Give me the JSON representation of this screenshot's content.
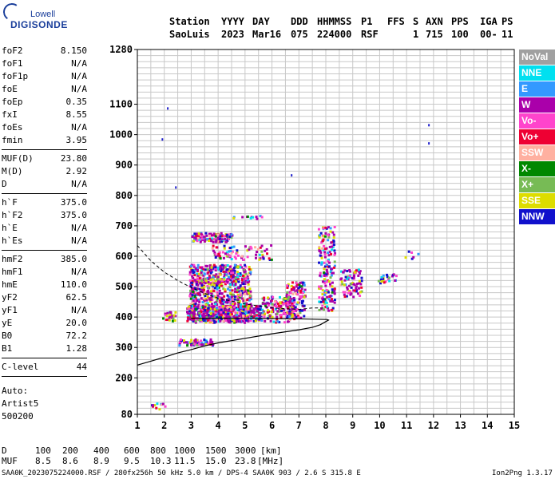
{
  "logo": {
    "top": "Lowell",
    "bottom": "DIGISONDE"
  },
  "header": {
    "labels": [
      "Station",
      "YYYY",
      "DAY",
      "DDD",
      "HHMMSS",
      "P1",
      "FFS",
      "S",
      "AXN",
      "PPS",
      "IGA",
      "PS"
    ],
    "values": [
      "SaoLuis",
      "2023",
      "Mar16",
      "075",
      "224000",
      "RSF",
      "",
      "1",
      "715",
      "100",
      "00-",
      "11"
    ]
  },
  "parameters": [
    {
      "name": "foF2",
      "value": "8.150"
    },
    {
      "name": "foF1",
      "value": "N/A"
    },
    {
      "name": "foF1p",
      "value": "N/A"
    },
    {
      "name": "foE",
      "value": "N/A"
    },
    {
      "name": "foEp",
      "value": "0.35"
    },
    {
      "name": "fxI",
      "value": "8.55"
    },
    {
      "name": "foEs",
      "value": "N/A"
    },
    {
      "name": "fmin",
      "value": "3.95"
    },
    {
      "sep": true
    },
    {
      "name": "MUF(D)",
      "value": "23.80"
    },
    {
      "name": "M(D)",
      "value": "2.92"
    },
    {
      "name": "D",
      "value": "N/A"
    },
    {
      "sep": true
    },
    {
      "name": "h`F",
      "value": "375.0"
    },
    {
      "name": "h`F2",
      "value": "375.0"
    },
    {
      "name": "h`E",
      "value": "N/A"
    },
    {
      "name": "h`Es",
      "value": "N/A"
    },
    {
      "sep": true
    },
    {
      "name": "hmF2",
      "value": "385.0"
    },
    {
      "name": "hmF1",
      "value": "N/A"
    },
    {
      "name": "hmE",
      "value": "110.0"
    },
    {
      "name": "yF2",
      "value": "62.5"
    },
    {
      "name": "yF1",
      "value": "N/A"
    },
    {
      "name": "yE",
      "value": "20.0"
    },
    {
      "name": "B0",
      "value": "72.2"
    },
    {
      "name": "B1",
      "value": "1.28"
    },
    {
      "sep": true
    },
    {
      "name": "C-level",
      "value": "44"
    },
    {
      "sep": true
    }
  ],
  "autoscaling": {
    "line1": "Auto:",
    "line2": "Artist5",
    "line3": "500200"
  },
  "legend": [
    {
      "label": "NoVal",
      "color": "#a0a0a0"
    },
    {
      "label": "NNE",
      "color": "#00e0f0"
    },
    {
      "label": "E",
      "color": "#3399ff"
    },
    {
      "label": "W",
      "color": "#aa00aa"
    },
    {
      "label": "Vo-",
      "color": "#ff44cc"
    },
    {
      "label": "Vo+",
      "color": "#ee0033"
    },
    {
      "label": "SSW",
      "color": "#ffb0a0"
    },
    {
      "label": "X-",
      "color": "#008800"
    },
    {
      "label": "X+",
      "color": "#77bb55"
    },
    {
      "label": "SSE",
      "color": "#dddd00"
    },
    {
      "label": "NNW",
      "color": "#1111cc"
    }
  ],
  "muf_table": {
    "d_label": "D",
    "distances": [
      "100",
      "200",
      "400",
      "600",
      "800",
      "1000",
      "1500",
      "3000"
    ],
    "d_unit": "[km]",
    "muf_label": "MUF",
    "mufs": [
      "8.5",
      "8.6",
      "8.9",
      "9.5",
      "10.3",
      "11.5",
      "15.0",
      "23.8"
    ],
    "muf_unit": "[MHz]"
  },
  "footer": {
    "left": "SAA0K_2023075224000.RSF / 280fx256h 50 kHz 5.0 km / DPS-4 SAA0K 903 / 2.6 S 315.8 E",
    "right": "Ion2Png 1.3.17"
  },
  "chart_data": {
    "type": "scatter",
    "title": "",
    "xlabel": "",
    "ylabel": "",
    "xlim": [
      1,
      15
    ],
    "ylim": [
      80,
      1280
    ],
    "xticks": [
      1,
      2,
      3,
      4,
      5,
      6,
      7,
      8,
      9,
      10,
      11,
      12,
      13,
      14,
      15
    ],
    "yticks": [
      80,
      200,
      300,
      400,
      500,
      600,
      700,
      800,
      900,
      1000,
      1100,
      1280
    ],
    "grid": true,
    "profile_curve": [
      [
        1.0,
        242
      ],
      [
        1.5,
        255
      ],
      [
        2.0,
        268
      ],
      [
        2.5,
        282
      ],
      [
        3.0,
        293
      ],
      [
        3.5,
        305
      ],
      [
        4.0,
        315
      ],
      [
        5.0,
        330
      ],
      [
        6.0,
        345
      ],
      [
        7.0,
        358
      ],
      [
        7.5,
        366
      ],
      [
        7.8,
        375
      ],
      [
        8.0,
        385
      ],
      [
        8.1,
        390
      ],
      [
        8.05,
        392
      ],
      [
        7.5,
        393
      ],
      [
        7.0,
        394
      ],
      [
        6.0,
        395
      ],
      [
        5.0,
        396
      ],
      [
        4.0,
        396
      ],
      [
        3.0,
        396
      ]
    ],
    "dashed_curve": [
      [
        1.0,
        635
      ],
      [
        1.5,
        585
      ],
      [
        2.0,
        548
      ],
      [
        2.5,
        520
      ],
      [
        3.0,
        497
      ],
      [
        3.5,
        478
      ],
      [
        4.0,
        462
      ],
      [
        5.0,
        443
      ],
      [
        6.0,
        430
      ],
      [
        7.0,
        425
      ],
      [
        7.5,
        430
      ],
      [
        8.0,
        430
      ]
    ],
    "trace_clusters": [
      {
        "x": [
          2.9,
          5.2
        ],
        "y": [
          385,
          575
        ],
        "n": 900
      },
      {
        "x": [
          2.8,
          5.6
        ],
        "y": [
          390,
          440
        ],
        "n": 400
      },
      {
        "x": [
          3.0,
          4.5
        ],
        "y": [
          650,
          680
        ],
        "n": 120
      },
      {
        "x": [
          4.5,
          5.6
        ],
        "y": [
          720,
          738
        ],
        "n": 12
      },
      {
        "x": [
          3.7,
          6.0
        ],
        "y": [
          590,
          640
        ],
        "n": 80
      },
      {
        "x": [
          2.5,
          3.8
        ],
        "y": [
          310,
          330
        ],
        "n": 70
      },
      {
        "x": [
          5.6,
          6.8
        ],
        "y": [
          385,
          470
        ],
        "n": 150
      },
      {
        "x": [
          6.5,
          7.2
        ],
        "y": [
          400,
          520
        ],
        "n": 120
      },
      {
        "x": [
          7.7,
          8.3
        ],
        "y": [
          420,
          700
        ],
        "n": 180
      },
      {
        "x": [
          8.5,
          9.3
        ],
        "y": [
          470,
          560
        ],
        "n": 80
      },
      {
        "x": [
          9.9,
          10.6
        ],
        "y": [
          515,
          545
        ],
        "n": 25
      },
      {
        "x": [
          1.9,
          2.4
        ],
        "y": [
          390,
          420
        ],
        "n": 25
      },
      {
        "x": [
          1.5,
          2.0
        ],
        "y": [
          100,
          120
        ],
        "n": 12
      },
      {
        "x": [
          10.9,
          11.4
        ],
        "y": [
          595,
          620
        ],
        "n": 6
      }
    ],
    "scattered_points": [
      [
        2.1,
        1090
      ],
      [
        2.4,
        830
      ],
      [
        1.9,
        988
      ],
      [
        6.7,
        870
      ],
      [
        11.8,
        1035
      ],
      [
        11.8,
        975
      ]
    ]
  }
}
